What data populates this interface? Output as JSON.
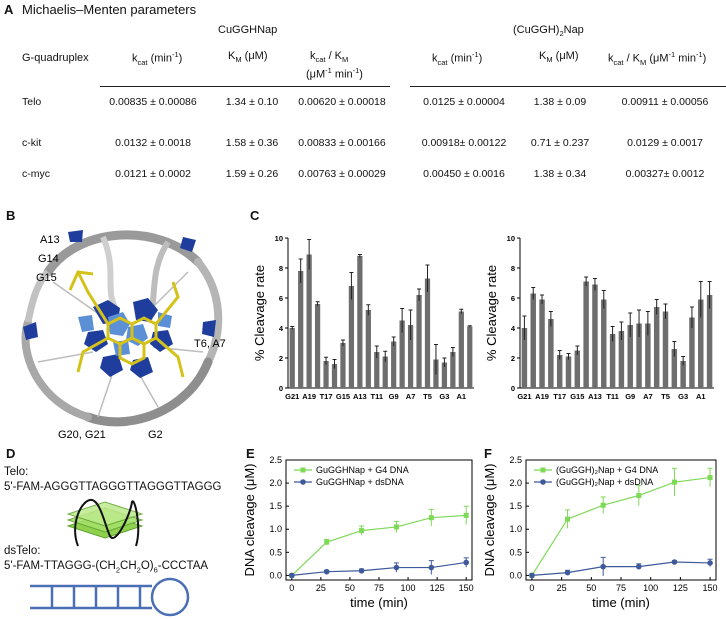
{
  "panelA": {
    "letter": "A",
    "title": "Michaelis–Menten parameters",
    "group1": "CuGGHNap",
    "group2": "(CuGGH)2Nap",
    "col_gq": "G-quadruplex",
    "units": {
      "kcat": "(min-1)",
      "km": "(μM)",
      "ratio_unit": "(μM-1 min-1)"
    },
    "rows": [
      {
        "name": "Telo",
        "c1": "0.00835 ± 0.00086",
        "c2": "1.34 ± 0.10",
        "c3": "0.00620 ± 0.00018",
        "c4": "0.0125 ± 0.00004",
        "c5": "1.38 ± 0.09",
        "c6": "0.00911 ± 0.00056"
      },
      {
        "name": "c-kit",
        "c1": "0.0132 ± 0.0018",
        "c2": "1.58 ± 0.36",
        "c3": "0.00833 ± 0.00166",
        "c4": "0.00918± 0.00122",
        "c5": "0.71 ± 0.237",
        "c6": "0.0129 ± 0.0017"
      },
      {
        "name": "c-myc",
        "c1": "0.0121 ± 0.0002",
        "c2": "1.59 ± 0.26",
        "c3": "0.00763 ± 0.00029",
        "c4": "0.00450 ± 0.0016",
        "c5": "1.38 ± 0.34",
        "c6": "0.00327± 0.0012"
      }
    ]
  },
  "panelB": {
    "letter": "B",
    "labels": [
      "A13",
      "G14",
      "G15",
      "T6, A7",
      "G20, G21",
      "G2"
    ]
  },
  "panelD": {
    "letter": "D",
    "telo_label": "Telo:",
    "telo_seq": "5'-FAM-AGGGTTAGGGTTAGGGTTAGGG",
    "ds_label": "dsTelo:",
    "ds_seq": "5'-FAM-TTAGGG-(CH2CH2O)6-CCCTAA"
  },
  "colors": {
    "bar": "#6e6e6e",
    "g4_series": "#7ed957",
    "ds_series": "#3e5a9b",
    "g4_stack": "#8fd14f",
    "hairpin": "#4a6fb5"
  },
  "chart_data": [
    {
      "panel": "C",
      "type": "bar",
      "ylabel": "% Cleavage rate",
      "ylim": [
        0,
        10
      ],
      "yticks": [
        0,
        2,
        4,
        6,
        8,
        10
      ],
      "tick_labels": [
        "G21",
        "A19",
        "T17",
        "G15",
        "A13",
        "T11",
        "G9",
        "A7",
        "T5",
        "G3",
        "A1"
      ],
      "values": [
        4.0,
        7.8,
        8.9,
        5.6,
        1.8,
        1.6,
        3.0,
        6.8,
        8.8,
        5.2,
        2.4,
        2.1,
        3.1,
        4.5,
        4.2,
        6.2,
        7.3,
        1.9,
        1.7,
        2.4,
        5.1,
        4.1
      ],
      "errors": [
        0.1,
        0.8,
        1.0,
        0.15,
        0.25,
        0.3,
        0.2,
        0.9,
        0.1,
        0.35,
        0.4,
        0.35,
        0.3,
        0.8,
        1.0,
        0.4,
        0.9,
        1.0,
        0.3,
        0.3,
        0.15,
        0.05
      ]
    },
    {
      "panel": "C2",
      "type": "bar",
      "ylabel": "% Cleavage rate",
      "ylim": [
        0,
        10
      ],
      "yticks": [
        0,
        2,
        4,
        6,
        8,
        10
      ],
      "tick_labels": [
        "G21",
        "A19",
        "T17",
        "G15",
        "A13",
        "T11",
        "G9",
        "A7",
        "T5",
        "G3",
        "A1"
      ],
      "values": [
        4.0,
        6.3,
        5.9,
        4.6,
        2.2,
        2.1,
        2.5,
        7.1,
        6.9,
        5.9,
        3.6,
        3.8,
        4.2,
        4.3,
        4.3,
        5.4,
        5.1,
        2.6,
        1.8,
        4.7,
        5.9,
        6.2
      ],
      "errors": [
        0.8,
        0.4,
        0.3,
        0.5,
        0.3,
        0.2,
        0.3,
        0.3,
        0.4,
        0.6,
        0.5,
        0.6,
        0.8,
        0.9,
        0.8,
        0.5,
        0.5,
        0.5,
        0.3,
        0.7,
        1.2,
        0.9
      ]
    },
    {
      "panel": "E",
      "type": "line",
      "xlabel": "time (min)",
      "ylabel": "DNA cleavage (μM)",
      "xlim": [
        -5,
        155
      ],
      "ylim": [
        -0.1,
        2.5
      ],
      "xticks": [
        0,
        25,
        50,
        75,
        100,
        125,
        150
      ],
      "yticks": [
        0.0,
        0.5,
        1.0,
        1.5,
        2.0,
        2.5
      ],
      "x": [
        0,
        30,
        60,
        90,
        120,
        150
      ],
      "series": [
        {
          "name": "GuGGHNap + G4 DNA",
          "values": [
            0.0,
            0.72,
            0.97,
            1.05,
            1.25,
            1.3
          ],
          "errors": [
            0.02,
            0.06,
            0.1,
            0.12,
            0.18,
            0.2
          ]
        },
        {
          "name": "GuGGHNap + dsDNA",
          "values": [
            0.0,
            0.08,
            0.1,
            0.17,
            0.17,
            0.28
          ],
          "errors": [
            0.02,
            0.03,
            0.04,
            0.1,
            0.15,
            0.1
          ]
        }
      ]
    },
    {
      "panel": "F",
      "type": "line",
      "xlabel": "time (min)",
      "ylabel": "DNA cleavage (μM)",
      "xlim": [
        -5,
        155
      ],
      "ylim": [
        -0.1,
        2.5
      ],
      "xticks": [
        0,
        25,
        50,
        75,
        100,
        125,
        150
      ],
      "yticks": [
        0.0,
        0.5,
        1.0,
        1.5,
        2.0,
        2.5
      ],
      "x": [
        0,
        30,
        60,
        90,
        120,
        150
      ],
      "series": [
        {
          "name": "(GuGGH)2Nap + G4 DNA",
          "values": [
            0.0,
            1.22,
            1.52,
            1.73,
            2.02,
            2.12
          ],
          "errors": [
            0.02,
            0.2,
            0.18,
            0.22,
            0.3,
            0.2
          ]
        },
        {
          "name": "(GuGGH)2Nap + dsDNA",
          "values": [
            0.0,
            0.06,
            0.19,
            0.19,
            0.29,
            0.27
          ],
          "errors": [
            0.02,
            0.05,
            0.2,
            0.06,
            0.03,
            0.08
          ]
        }
      ]
    }
  ]
}
